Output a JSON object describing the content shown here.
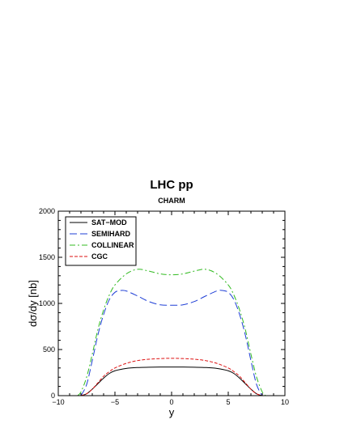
{
  "chart_data": {
    "type": "line",
    "title": "LHC pp",
    "subtitle": "CHARM",
    "xlabel": "y",
    "ylabel": "dσ/dy [nb]",
    "xlim": [
      -10,
      10
    ],
    "ylim": [
      0,
      2000
    ],
    "x_ticks": [
      -10,
      -5,
      0,
      5,
      10
    ],
    "y_ticks": [
      0,
      500,
      1000,
      1500,
      2000
    ],
    "x_tick_labels": [
      "−10",
      "−5",
      "0",
      "5",
      "10"
    ],
    "y_tick_labels": [
      "0",
      "500",
      "1000",
      "1500",
      "2000"
    ],
    "grid": false,
    "legend_position": "top-left",
    "series": [
      {
        "name": "SAT−MOD",
        "color": "#000000",
        "dash": "solid",
        "x": [
          -8.0,
          -7.5,
          -7.0,
          -6.5,
          -6.0,
          -5.5,
          -5.0,
          -4.0,
          -3.0,
          -2.0,
          -1.0,
          0.0,
          1.0,
          2.0,
          3.0,
          4.0,
          5.0,
          5.5,
          6.0,
          6.5,
          7.0,
          7.5,
          8.0
        ],
        "y": [
          0,
          20,
          70,
          130,
          190,
          240,
          270,
          295,
          305,
          308,
          310,
          310,
          310,
          308,
          305,
          295,
          270,
          240,
          190,
          130,
          70,
          20,
          0
        ]
      },
      {
        "name": "SEMIHARD",
        "color": "#1f3fd6",
        "dash": "long",
        "x": [
          -8.0,
          -7.5,
          -7.0,
          -6.5,
          -6.0,
          -5.5,
          -5.0,
          -4.5,
          -4.0,
          -3.0,
          -2.0,
          -1.0,
          0.0,
          1.0,
          2.0,
          3.0,
          4.0,
          4.5,
          5.0,
          5.5,
          6.0,
          6.5,
          7.0,
          7.5,
          8.0
        ],
        "y": [
          0,
          120,
          380,
          660,
          880,
          1040,
          1120,
          1140,
          1135,
          1080,
          1020,
          985,
          980,
          985,
          1020,
          1080,
          1135,
          1140,
          1120,
          1040,
          880,
          660,
          380,
          120,
          0
        ]
      },
      {
        "name": "COLLINEAR",
        "color": "#33bb22",
        "dash": "dashdot",
        "x": [
          -8.3,
          -8.0,
          -7.5,
          -7.0,
          -6.5,
          -6.0,
          -5.5,
          -5.0,
          -4.0,
          -3.0,
          -2.0,
          -1.0,
          0.0,
          1.0,
          2.0,
          3.0,
          4.0,
          5.0,
          5.5,
          6.0,
          6.5,
          7.0,
          7.5,
          8.0,
          8.3
        ],
        "y": [
          0,
          40,
          200,
          450,
          720,
          930,
          1090,
          1200,
          1320,
          1370,
          1350,
          1320,
          1310,
          1320,
          1350,
          1370,
          1320,
          1200,
          1090,
          930,
          720,
          450,
          200,
          40,
          0
        ]
      },
      {
        "name": "CGC",
        "color": "#dd1111",
        "dash": "short",
        "x": [
          -8.0,
          -7.5,
          -7.0,
          -6.5,
          -6.0,
          -5.5,
          -5.0,
          -4.0,
          -3.0,
          -2.0,
          -1.0,
          0.0,
          1.0,
          2.0,
          3.0,
          4.0,
          5.0,
          5.5,
          6.0,
          6.5,
          7.0,
          7.5,
          8.0
        ],
        "y": [
          0,
          20,
          70,
          140,
          210,
          260,
          300,
          350,
          380,
          395,
          402,
          405,
          402,
          395,
          380,
          350,
          300,
          260,
          210,
          140,
          70,
          20,
          0
        ]
      }
    ]
  }
}
